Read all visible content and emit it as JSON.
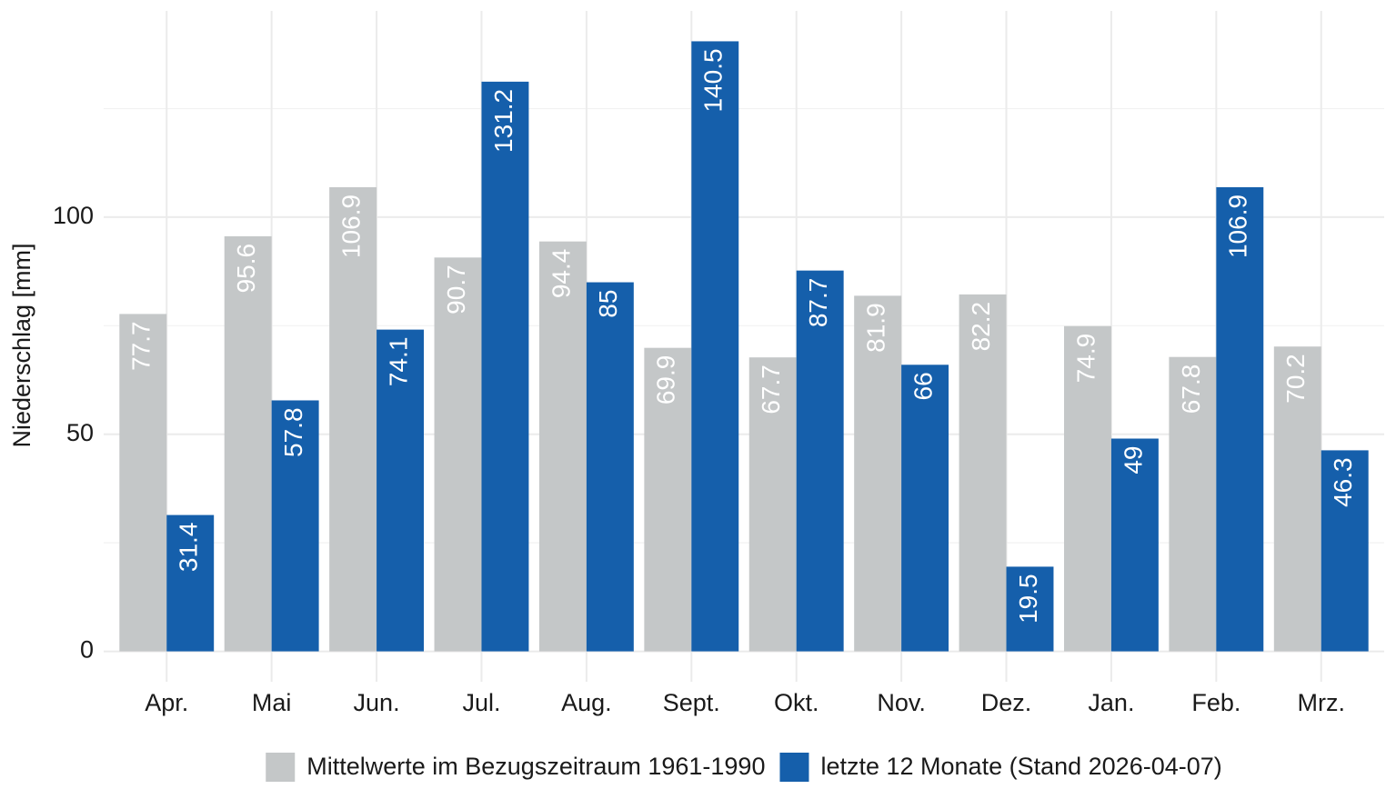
{
  "chart_data": {
    "type": "bar",
    "y_label": "Niederschlag [mm]",
    "categories": [
      "Apr.",
      "Mai",
      "Jun.",
      "Jul.",
      "Aug.",
      "Sept.",
      "Okt.",
      "Nov.",
      "Dez.",
      "Jan.",
      "Feb.",
      "Mrz."
    ],
    "series": [
      {
        "name": "Mittelwerte im Bezugszeitraum 1961-1990",
        "color": "#c4c7c8",
        "values": [
          77.7,
          95.6,
          106.9,
          90.7,
          94.4,
          69.9,
          67.7,
          81.9,
          82.2,
          74.9,
          67.8,
          70.2
        ]
      },
      {
        "name": "letzte 12 Monate (Stand 2026-04-07)",
        "color": "#155fab",
        "values": [
          31.4,
          57.8,
          74.1,
          131.2,
          85,
          140.5,
          87.7,
          66,
          19.5,
          49,
          106.9,
          46.3
        ]
      }
    ],
    "ylim": [
      -7,
      147.5
    ],
    "yticks": [
      0,
      50,
      100
    ],
    "yminor": [
      25,
      75,
      125
    ],
    "grid": true,
    "legend": "bottom"
  }
}
